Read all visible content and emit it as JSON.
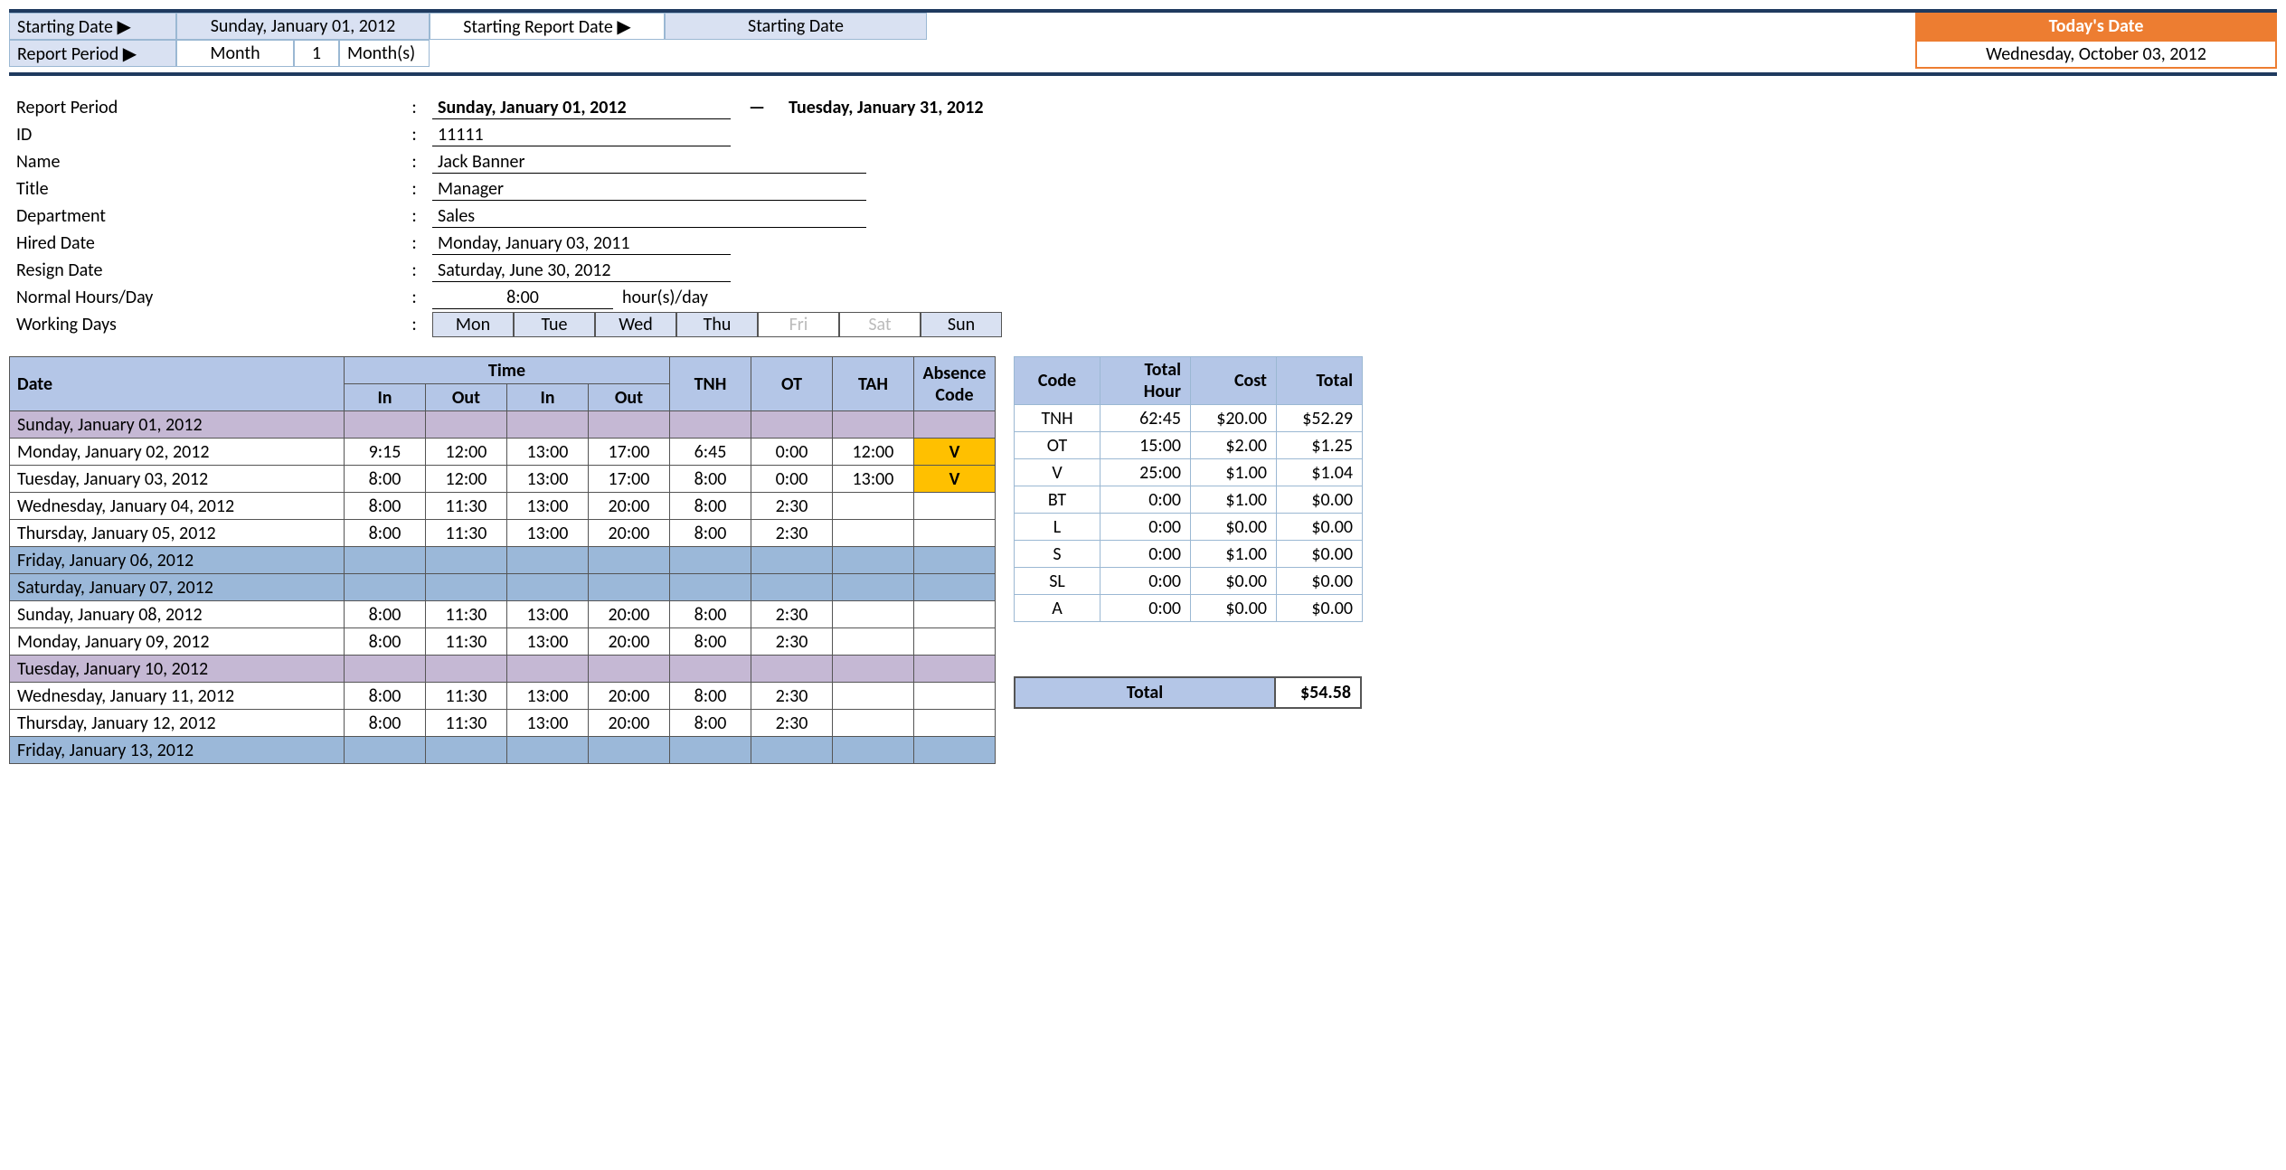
{
  "header": {
    "starting_date_label": "Starting Date ▶",
    "starting_date_value": "Sunday, January 01, 2012",
    "report_period_label": "Report Period ▶",
    "report_period_unit": "Month",
    "report_period_num": "1",
    "report_period_unit2": "Month(s)",
    "starting_report_label": "Starting Report Date ▶",
    "starting_report_value": "Starting Date",
    "today_label": "Today's Date",
    "today_value": "Wednesday, October 03, 2012"
  },
  "info": {
    "report_period_label": "Report Period",
    "report_start": "Sunday, January 01, 2012",
    "report_end": "Tuesday, January 31, 2012",
    "id_label": "ID",
    "id_value": "11111",
    "name_label": "Name",
    "name_value": "Jack Banner",
    "title_label": "Title",
    "title_value": "Manager",
    "dept_label": "Department",
    "dept_value": "Sales",
    "hired_label": "Hired Date",
    "hired_value": "Monday, January 03, 2011",
    "resign_label": "Resign Date",
    "resign_value": "Saturday, June 30, 2012",
    "hours_label": "Normal Hours/Day",
    "hours_value": "8:00",
    "hours_unit": "hour(s)/day",
    "days_label": "Working Days",
    "days": [
      "Mon",
      "Tue",
      "Wed",
      "Thu",
      "Fri",
      "Sat",
      "Sun"
    ],
    "days_active": [
      true,
      true,
      true,
      true,
      false,
      false,
      true
    ]
  },
  "table": {
    "headers": {
      "date": "Date",
      "time": "Time",
      "in": "In",
      "out": "Out",
      "tnh": "TNH",
      "ot": "OT",
      "tah": "TAH",
      "abs": "Absence Code"
    },
    "rows": [
      {
        "date": "Sunday, January 01, 2012",
        "style": "purple"
      },
      {
        "date": "Monday, January 02, 2012",
        "in1": "9:15",
        "out1": "12:00",
        "in2": "13:00",
        "out2": "17:00",
        "tnh": "6:45",
        "ot": "0:00",
        "tah": "12:00",
        "abs": "V"
      },
      {
        "date": "Tuesday, January 03, 2012",
        "in1": "8:00",
        "out1": "12:00",
        "in2": "13:00",
        "out2": "17:00",
        "tnh": "8:00",
        "ot": "0:00",
        "tah": "13:00",
        "abs": "V"
      },
      {
        "date": "Wednesday, January 04, 2012",
        "in1": "8:00",
        "out1": "11:30",
        "in2": "13:00",
        "out2": "20:00",
        "tnh": "8:00",
        "ot": "2:30"
      },
      {
        "date": "Thursday, January 05, 2012",
        "in1": "8:00",
        "out1": "11:30",
        "in2": "13:00",
        "out2": "20:00",
        "tnh": "8:00",
        "ot": "2:30"
      },
      {
        "date": "Friday, January 06, 2012",
        "style": "blue"
      },
      {
        "date": "Saturday, January 07, 2012",
        "style": "blue"
      },
      {
        "date": "Sunday, January 08, 2012",
        "in1": "8:00",
        "out1": "11:30",
        "in2": "13:00",
        "out2": "20:00",
        "tnh": "8:00",
        "ot": "2:30"
      },
      {
        "date": "Monday, January 09, 2012",
        "in1": "8:00",
        "out1": "11:30",
        "in2": "13:00",
        "out2": "20:00",
        "tnh": "8:00",
        "ot": "2:30"
      },
      {
        "date": "Tuesday, January 10, 2012",
        "style": "purple"
      },
      {
        "date": "Wednesday, January 11, 2012",
        "in1": "8:00",
        "out1": "11:30",
        "in2": "13:00",
        "out2": "20:00",
        "tnh": "8:00",
        "ot": "2:30"
      },
      {
        "date": "Thursday, January 12, 2012",
        "in1": "8:00",
        "out1": "11:30",
        "in2": "13:00",
        "out2": "20:00",
        "tnh": "8:00",
        "ot": "2:30"
      },
      {
        "date": "Friday, January 13, 2012",
        "style": "blue"
      }
    ]
  },
  "summary": {
    "headers": {
      "code": "Code",
      "hour": "Total Hour",
      "cost": "Cost",
      "total": "Total"
    },
    "rows": [
      {
        "code": "TNH",
        "hour": "62:45",
        "cost": "$20.00",
        "total": "$52.29"
      },
      {
        "code": "OT",
        "hour": "15:00",
        "cost": "$2.00",
        "total": "$1.25"
      },
      {
        "code": "V",
        "hour": "25:00",
        "cost": "$1.00",
        "total": "$1.04"
      },
      {
        "code": "BT",
        "hour": "0:00",
        "cost": "$1.00",
        "total": "$0.00"
      },
      {
        "code": "L",
        "hour": "0:00",
        "cost": "$0.00",
        "total": "$0.00"
      },
      {
        "code": "S",
        "hour": "0:00",
        "cost": "$1.00",
        "total": "$0.00"
      },
      {
        "code": "SL",
        "hour": "0:00",
        "cost": "$0.00",
        "total": "$0.00"
      },
      {
        "code": "A",
        "hour": "0:00",
        "cost": "$0.00",
        "total": "$0.00"
      }
    ],
    "grand_label": "Total",
    "grand_value": "$54.58"
  }
}
